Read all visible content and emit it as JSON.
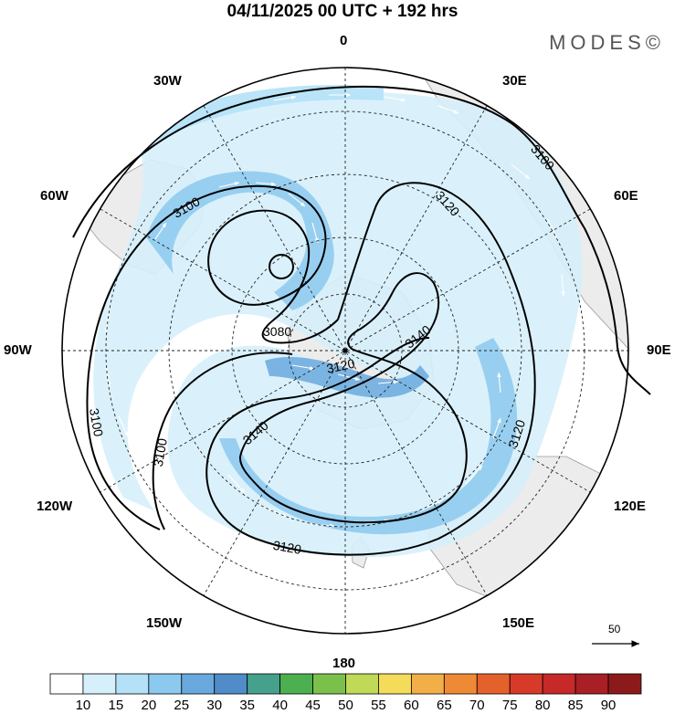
{
  "title": "04/11/2025  00 UTC  + 192 hrs",
  "brand": "MODES©",
  "longitude_labels": {
    "lon_0": "0",
    "lon_30e": "30E",
    "lon_60e": "60E",
    "lon_90e": "90E",
    "lon_120e": "120E",
    "lon_150e": "150E",
    "lon_180": "180",
    "lon_150w": "150W",
    "lon_120w": "120W",
    "lon_90w": "90W",
    "lon_60w": "60W",
    "lon_30w": "30W"
  },
  "contour_labels": {
    "c3100_a": "3100",
    "c3100_b": "3100",
    "c3100_c": "3100",
    "c3100_d": "3100",
    "c3120_a": "3120",
    "c3120_b": "3120",
    "c3120_c": "3120",
    "c3120_d": "3120",
    "c3140_a": "3140",
    "c3140_b": "3140",
    "c3080": "3080"
  },
  "reference_vector": "50",
  "colorbar": {
    "labels": [
      "10",
      "15",
      "20",
      "25",
      "30",
      "35",
      "40",
      "45",
      "50",
      "55",
      "60",
      "65",
      "70",
      "75",
      "80",
      "85",
      "90"
    ],
    "colors": [
      "#ffffff",
      "#d6f0fb",
      "#b4e1f7",
      "#8cc9ee",
      "#6aa9de",
      "#4f8cc8",
      "#45a08c",
      "#4caf50",
      "#7cc04c",
      "#c0d957",
      "#f4dc5a",
      "#f2ae47",
      "#ee8a35",
      "#e5612c",
      "#d83a2a",
      "#c72828",
      "#a81f25",
      "#8c1a1a"
    ]
  },
  "colors": {
    "land": "#ececec",
    "shading_light": "#d6f0fb",
    "shading_mid": "#b4e1f7",
    "shading_dark": "#8cc9ee"
  }
}
